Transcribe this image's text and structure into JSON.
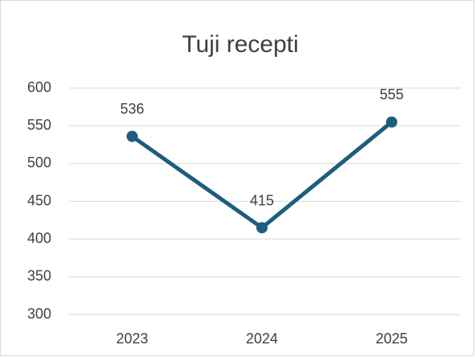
{
  "chart_data": {
    "type": "line",
    "title": "Tuji recepti",
    "categories": [
      "2023",
      "2024",
      "2025"
    ],
    "values": [
      536,
      415,
      555
    ],
    "color": "#1d5d7d",
    "ylim": [
      300,
      600
    ],
    "yticks": [
      300,
      350,
      400,
      450,
      500,
      550,
      600
    ],
    "grid": true
  }
}
